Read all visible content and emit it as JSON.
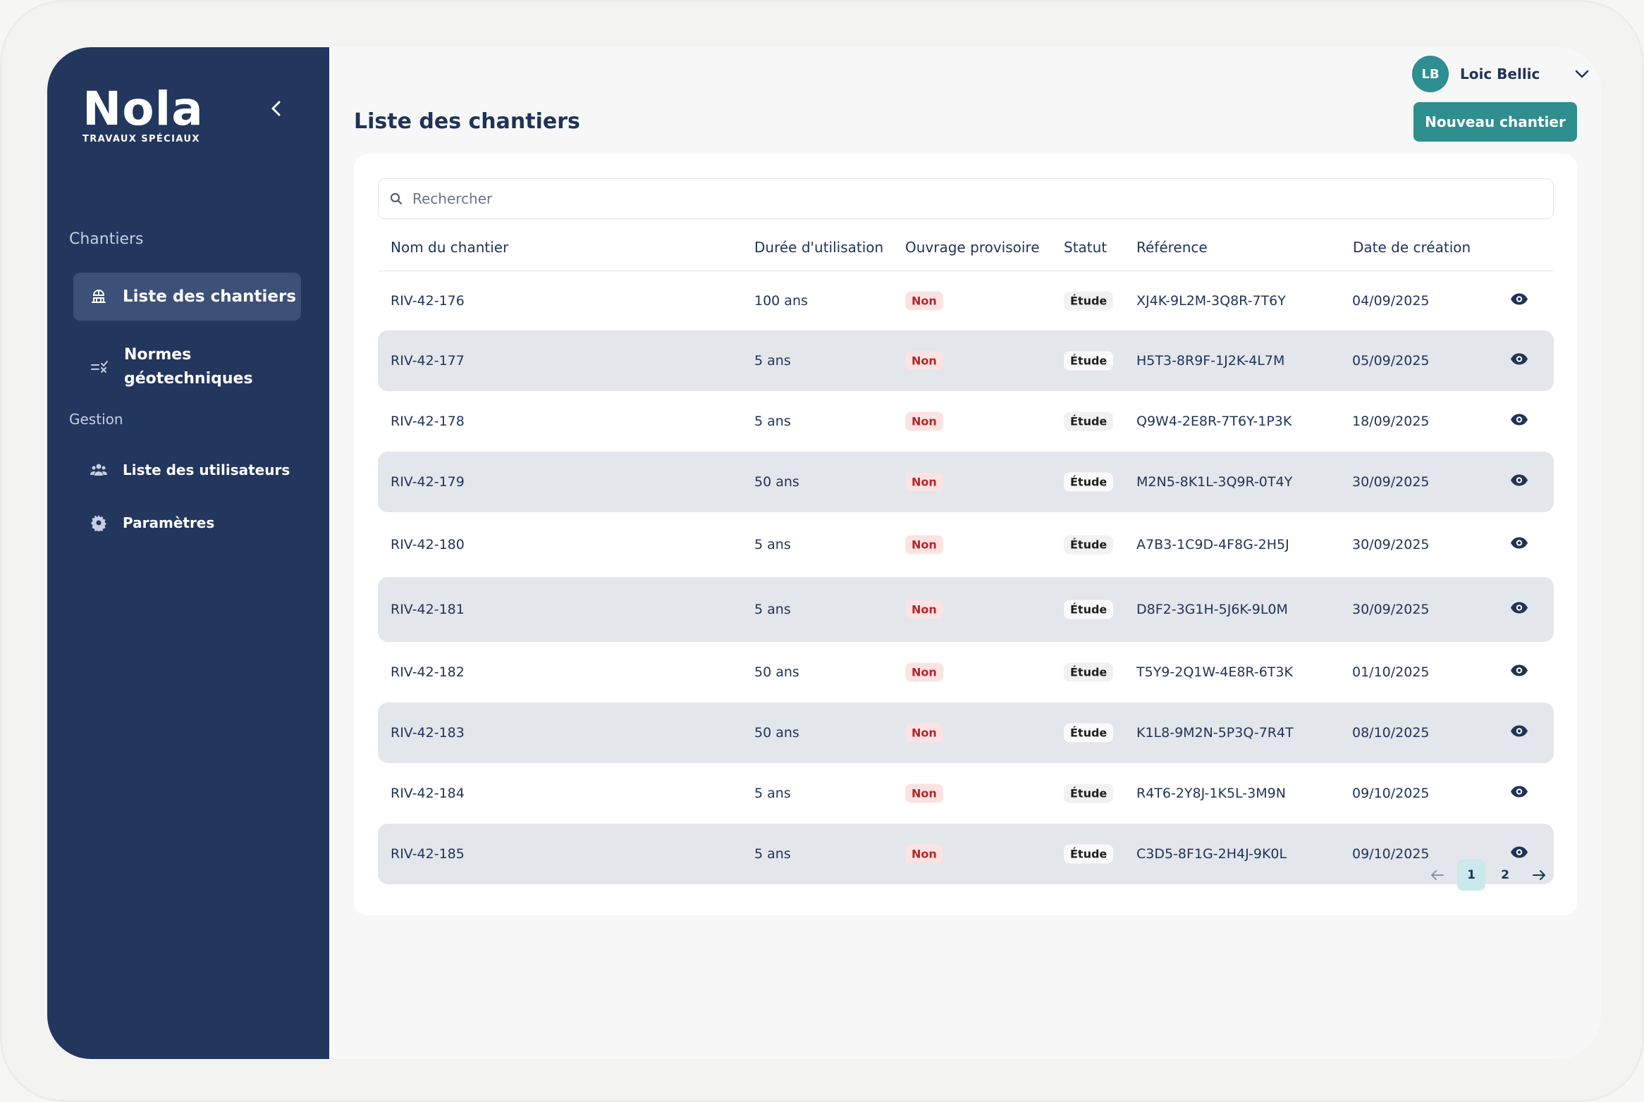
{
  "brand": {
    "name": "Nola",
    "subtitle": "TRAVAUX SPÉCIAUX"
  },
  "sidebar": {
    "sections": [
      {
        "label": "Chantiers"
      },
      {
        "label": "Gestion"
      }
    ],
    "items": [
      {
        "label": "Liste des chantiers",
        "icon": "construction-icon",
        "active": true
      },
      {
        "label": "Normes géotechniques",
        "icon": "checklist-icon",
        "active": false
      },
      {
        "label": "Liste des utilisateurs",
        "icon": "users-icon",
        "active": false
      },
      {
        "label": "Paramètres",
        "icon": "gear-icon",
        "active": false
      }
    ]
  },
  "header": {
    "user_initials": "LB",
    "user_name": "Loic Bellic",
    "title": "Liste des chantiers",
    "new_button": "Nouveau chantier"
  },
  "search": {
    "placeholder": "Rechercher"
  },
  "table": {
    "columns": [
      "Nom du chantier",
      "Durée d'utilisation",
      "Ouvrage provisoire",
      "Statut",
      "Référence",
      "Date de création"
    ],
    "rows": [
      {
        "name": "RIV-42-176",
        "duration": "100 ans",
        "provisional": "Non",
        "status": "Étude",
        "reference": "XJ4K-9L2M-3Q8R-7T6Y",
        "date": "04/09/2025"
      },
      {
        "name": "RIV-42-177",
        "duration": "5 ans",
        "provisional": "Non",
        "status": "Étude",
        "reference": "H5T3-8R9F-1J2K-4L7M",
        "date": "05/09/2025"
      },
      {
        "name": "RIV-42-178",
        "duration": "5 ans",
        "provisional": "Non",
        "status": "Étude",
        "reference": "Q9W4-2E8R-7T6Y-1P3K",
        "date": "18/09/2025"
      },
      {
        "name": "RIV-42-179",
        "duration": "50 ans",
        "provisional": "Non",
        "status": "Étude",
        "reference": "M2N5-8K1L-3Q9R-0T4Y",
        "date": "30/09/2025"
      },
      {
        "name": "RIV-42-180",
        "duration": "5 ans",
        "provisional": "Non",
        "status": "Étude",
        "reference": "A7B3-1C9D-4F8G-2H5J",
        "date": "30/09/2025"
      },
      {
        "name": "RIV-42-181",
        "duration": "5 ans",
        "provisional": "Non",
        "status": "Étude",
        "reference": "D8F2-3G1H-5J6K-9L0M",
        "date": "30/09/2025"
      },
      {
        "name": "RIV-42-182",
        "duration": "50 ans",
        "provisional": "Non",
        "status": "Étude",
        "reference": "T5Y9-2Q1W-4E8R-6T3K",
        "date": "01/10/2025"
      },
      {
        "name": "RIV-42-183",
        "duration": "50 ans",
        "provisional": "Non",
        "status": "Étude",
        "reference": "K1L8-9M2N-5P3Q-7R4T",
        "date": "08/10/2025"
      },
      {
        "name": "RIV-42-184",
        "duration": "5 ans",
        "provisional": "Non",
        "status": "Étude",
        "reference": "R4T6-2Y8J-1K5L-3M9N",
        "date": "09/10/2025"
      },
      {
        "name": "RIV-42-185",
        "duration": "5 ans",
        "provisional": "Non",
        "status": "Étude",
        "reference": "C3D5-8F1G-2H4J-9K0L",
        "date": "09/10/2025"
      }
    ]
  },
  "pagination": {
    "pages": [
      "1",
      "2"
    ],
    "current": "1"
  },
  "colors": {
    "sidebar": "#22365e",
    "accent": "#2f8e8e",
    "text": "#1f3358",
    "badge_non": "#b3262a"
  }
}
